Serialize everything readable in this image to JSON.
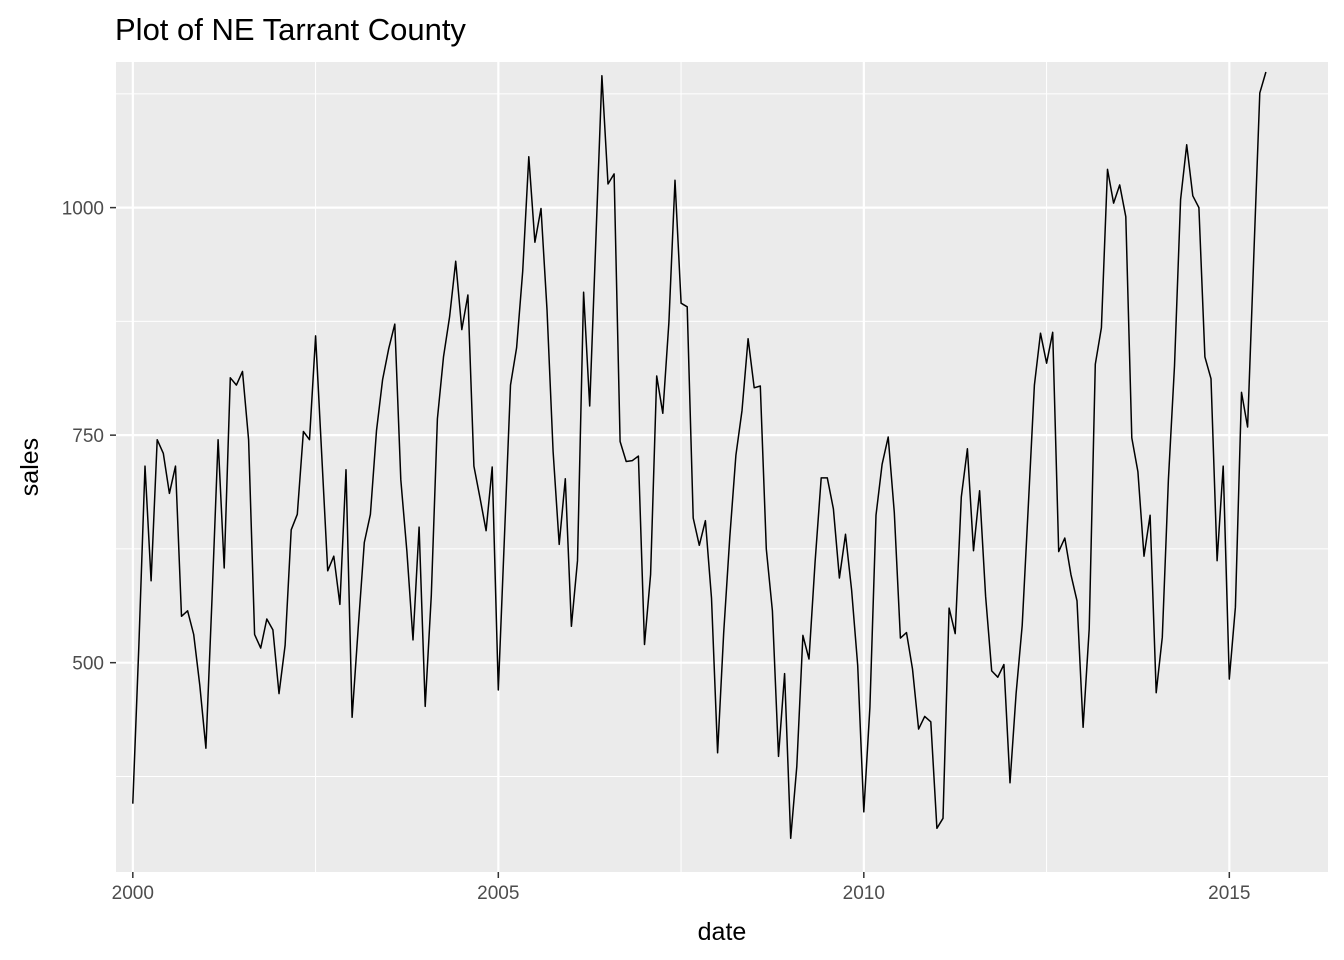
{
  "chart_data": {
    "type": "line",
    "title": "Plot of NE Tarrant County",
    "xlabel": "date",
    "ylabel": "sales",
    "x_start": "2000-01",
    "x_frequency": "monthly",
    "xlim": [
      1999.77,
      2016.35
    ],
    "ylim": [
      270,
      1160
    ],
    "x_ticks": [
      2000,
      2005,
      2010,
      2015
    ],
    "x_tick_labels": [
      "2000",
      "2005",
      "2010",
      "2015"
    ],
    "y_ticks": [
      500,
      750,
      1000
    ],
    "y_tick_labels": [
      "500",
      "750",
      "1000"
    ],
    "grid": true,
    "background": "#ebebeb",
    "line_color": "#000000",
    "series": [
      {
        "values": [
          345,
          520,
          716,
          590,
          745,
          730,
          686,
          716,
          551,
          557,
          531,
          475,
          406,
          570,
          745,
          604,
          813,
          805,
          820,
          745,
          531,
          516,
          548,
          536,
          466,
          519,
          646,
          663,
          754,
          745,
          859,
          729,
          601,
          617,
          564,
          712,
          440,
          538,
          632,
          663,
          755,
          811,
          845,
          872,
          701,
          622,
          525,
          649,
          452,
          574,
          768,
          836,
          880,
          941,
          866,
          904,
          716,
          681,
          645,
          715,
          470,
          637,
          805,
          846,
          930,
          1056,
          962,
          999,
          888,
          732,
          630,
          702,
          540,
          612,
          907,
          782,
          963,
          1145,
          1026,
          1037,
          743,
          721,
          722,
          727,
          520,
          597,
          815,
          774,
          874,
          1030,
          895,
          891,
          659,
          629,
          656,
          571,
          401,
          533,
          638,
          728,
          777,
          856,
          802,
          804,
          625,
          557,
          397,
          488,
          307,
          386,
          530,
          504,
          611,
          703,
          703,
          669,
          593,
          641,
          580,
          497,
          336,
          451,
          662,
          718,
          748,
          665,
          527,
          533,
          493,
          427,
          441,
          435,
          318,
          329,
          560,
          532,
          682,
          735,
          623,
          689,
          573,
          491,
          484,
          498,
          368,
          466,
          541,
          672,
          805,
          862,
          829,
          863,
          622,
          637,
          597,
          568,
          429,
          537,
          828,
          868,
          1042,
          1005,
          1025,
          990,
          747,
          710,
          617,
          662,
          467,
          528,
          701,
          826,
          1009,
          1069,
          1013,
          1000,
          836,
          812,
          612,
          716,
          482,
          561,
          797,
          759,
          944,
          1126,
          1149
        ]
      }
    ]
  }
}
